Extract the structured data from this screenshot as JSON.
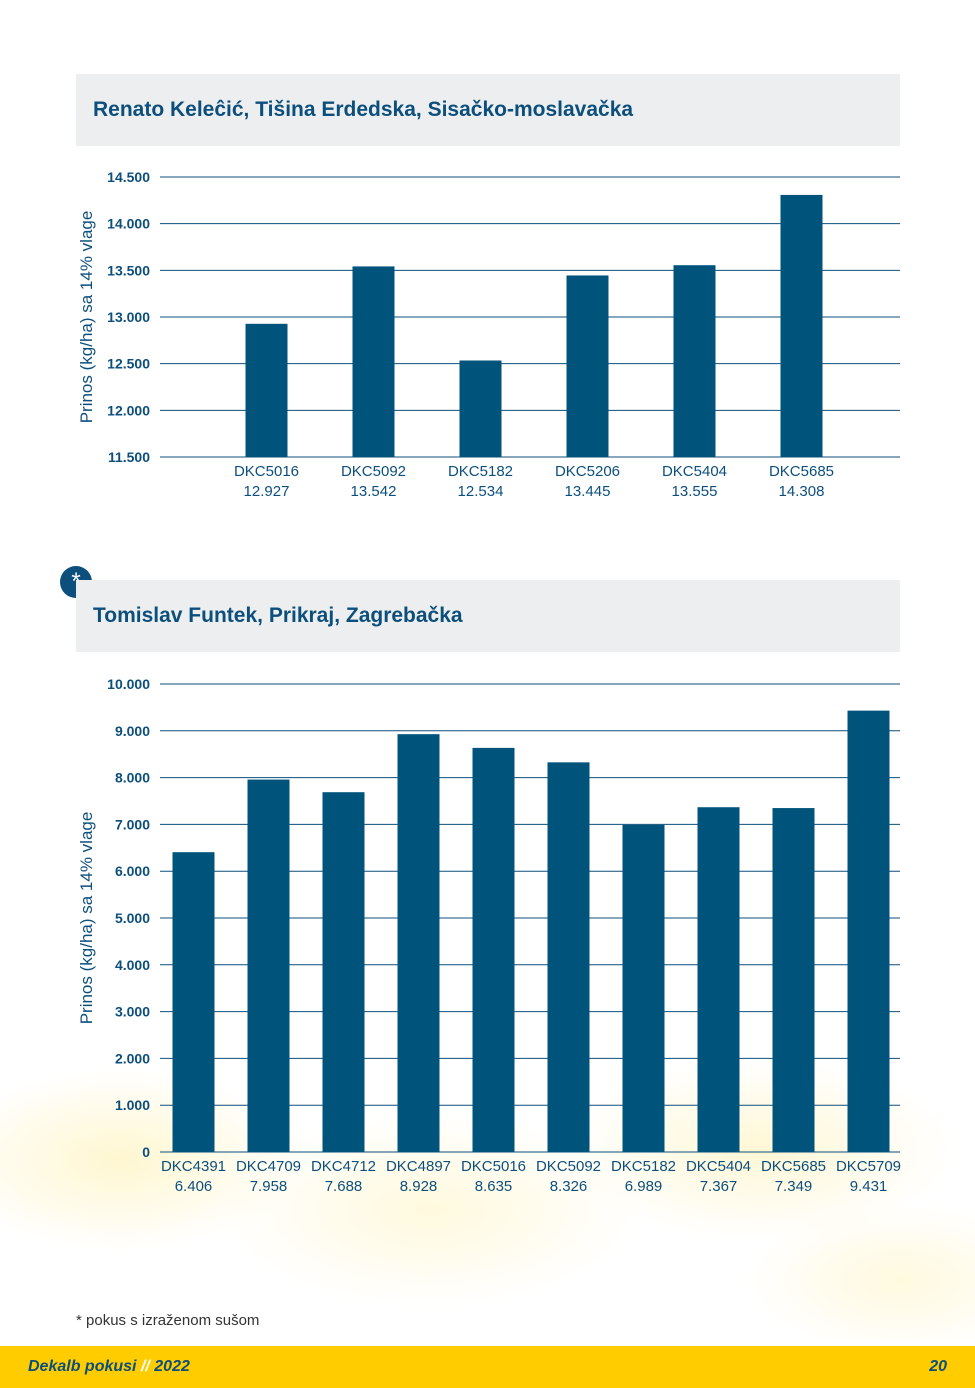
{
  "chart_data": [
    {
      "type": "bar",
      "title": "Renato Keleĉić, Tišina Erdedska, Sisačko-moslavačka",
      "ylabel": "Prinos (kg/ha) sa 14% vlage",
      "ylim": [
        11500,
        14500
      ],
      "yticks": [
        11500,
        12000,
        12500,
        13000,
        13500,
        14000,
        14500
      ],
      "ytick_labels": [
        "11.500",
        "12.000",
        "12.500",
        "13.000",
        "13.500",
        "14.000",
        "14.500"
      ],
      "categories": [
        "DKC5016",
        "DKC5092",
        "DKC5182",
        "DKC5206",
        "DKC5404",
        "DKC5685"
      ],
      "value_labels": [
        "12.927",
        "13.542",
        "12.534",
        "13.445",
        "13.555",
        "14.308"
      ],
      "values": [
        12927,
        13542,
        12534,
        13445,
        13555,
        14308
      ],
      "color": "#00537b",
      "grid": true
    },
    {
      "type": "bar",
      "title": "Tomislav Funtek, Prikraj, Zagrebačka",
      "ylabel": "Prinos (kg/ha) sa 14% vlage",
      "ylim": [
        0,
        10000
      ],
      "yticks": [
        0,
        1000,
        2000,
        3000,
        4000,
        5000,
        6000,
        7000,
        8000,
        9000,
        10000
      ],
      "ytick_labels": [
        "0",
        "1.000",
        "2.000",
        "3.000",
        "4.000",
        "5.000",
        "6.000",
        "7.000",
        "8.000",
        "9.000",
        "10.000"
      ],
      "categories": [
        "DKC4391",
        "DKC4709",
        "DKC4712",
        "DKC4897",
        "DKC5016",
        "DKC5092",
        "DKC5182",
        "DKC5404",
        "DKC5685",
        "DKC5709"
      ],
      "value_labels": [
        "6.406",
        "7.958",
        "7.688",
        "8.928",
        "8.635",
        "8.326",
        "6.989",
        "7.367",
        "7.349",
        "9.431"
      ],
      "values": [
        6406,
        7958,
        7688,
        8928,
        8635,
        8326,
        6989,
        7367,
        7349,
        9431
      ],
      "color": "#00537b",
      "grid": true
    }
  ],
  "badge": {
    "symbol": "*"
  },
  "footnote": "* pokus s izraženom sušom",
  "footer": {
    "brand": "Dekalb pokusi",
    "separator": "//",
    "year": "2022",
    "page_number": "20"
  },
  "colors": {
    "accent": "#00537b",
    "header_bg": "#eceeef",
    "footer_bg": "#ffcc00"
  }
}
